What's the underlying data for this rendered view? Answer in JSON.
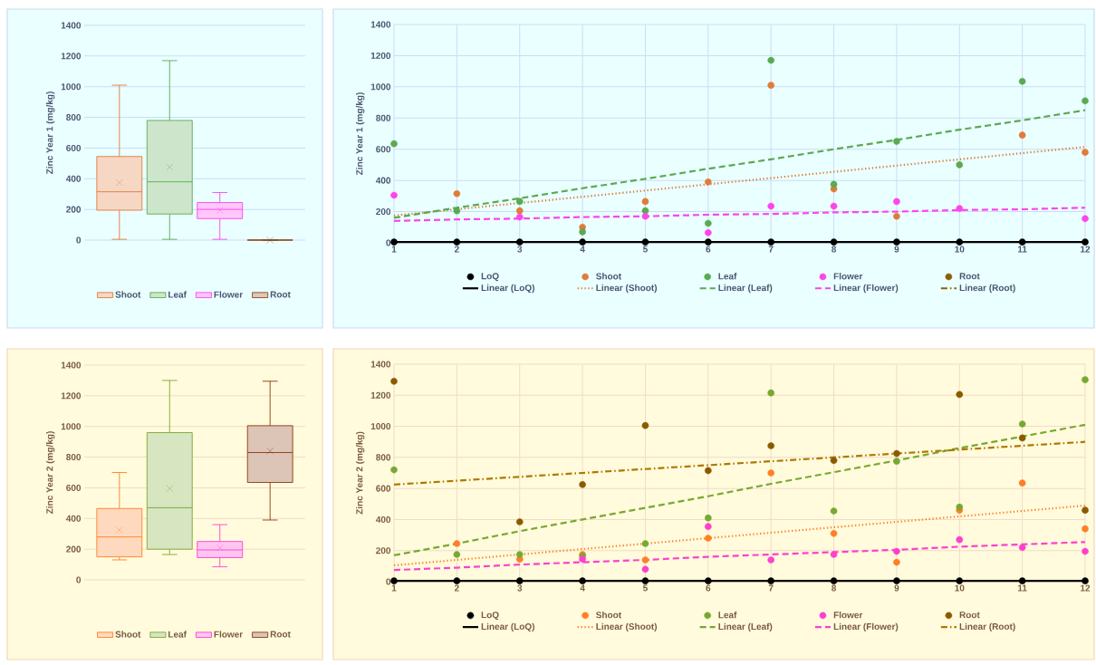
{
  "chart_data": [
    {
      "type": "box",
      "ylabel": "Zinc Year 1 (mg/kg)",
      "categories": [
        null
      ],
      "series": [
        {
          "name": "Shoot",
          "color": "#e07b39",
          "boxes": [
            {
              "low": 5,
              "q1": 195,
              "median": 315,
              "q3": 545,
              "high": 1010,
              "mean": 375
            }
          ]
        },
        {
          "name": "Leaf",
          "color": "#5aaa50",
          "boxes": [
            {
              "low": 5,
              "q1": 170,
              "median": 380,
              "q3": 780,
              "high": 1170,
              "mean": 475
            }
          ]
        },
        {
          "name": "Flower",
          "color": "#ff44ee",
          "boxes": [
            {
              "low": 5,
              "q1": 140,
              "median": 200,
              "q3": 245,
              "high": 310,
              "mean": 195
            }
          ]
        },
        {
          "name": "Root",
          "color": "#8b4a20",
          "boxes": [
            {
              "low": 0,
              "q1": 0,
              "median": 0,
              "q3": 0,
              "high": 0,
              "mean": 0
            }
          ]
        }
      ],
      "ylim": [
        0,
        1400
      ],
      "yticks": [
        0,
        200,
        400,
        600,
        800,
        1000,
        1200,
        1400
      ],
      "grid": "y",
      "legend": "bottom"
    },
    {
      "type": "scatter",
      "ylabel": "Zinc Year 1 (mg/kg)",
      "x": [
        1,
        2,
        3,
        4,
        5,
        6,
        7,
        8,
        9,
        10,
        11,
        12
      ],
      "series": [
        {
          "name": "LoQ",
          "color": "#000000",
          "values": [
            5,
            5,
            5,
            5,
            5,
            5,
            5,
            5,
            5,
            5,
            5,
            5
          ]
        },
        {
          "name": "Shoot",
          "color": "#e07b39",
          "values": [
            null,
            315,
            205,
            100,
            265,
            390,
            1010,
            345,
            170,
            null,
            690,
            580
          ]
        },
        {
          "name": "Leaf",
          "color": "#5aaa50",
          "values": [
            635,
            205,
            265,
            70,
            205,
            125,
            1170,
            375,
            650,
            500,
            1035,
            910
          ]
        },
        {
          "name": "Flower",
          "color": "#ff44ee",
          "values": [
            305,
            null,
            165,
            null,
            170,
            65,
            235,
            235,
            265,
            220,
            null,
            155
          ]
        },
        {
          "name": "Root",
          "color": "#8b6000",
          "values": [
            null,
            null,
            null,
            null,
            null,
            null,
            null,
            null,
            null,
            null,
            null,
            null
          ]
        },
        {
          "name": "Linear (LoQ)",
          "type": "line",
          "color": "#000000",
          "values": [
            5,
            5,
            5,
            5,
            5,
            5,
            5,
            5,
            5,
            5,
            5,
            5
          ],
          "line_style": "solid",
          "marker": "none"
        },
        {
          "name": "Linear (Shoot)",
          "type": "line",
          "color": "#e07b39",
          "values": [
            175,
            215,
            255,
            295,
            335,
            375,
            415,
            455,
            495,
            535,
            575,
            615
          ],
          "line_style": "dotted",
          "marker": "none"
        },
        {
          "name": "Linear (Leaf)",
          "type": "line",
          "color": "#5aaa50",
          "values": [
            160,
            225,
            285,
            350,
            410,
            475,
            535,
            600,
            660,
            725,
            785,
            850
          ],
          "line_style": "dashed",
          "marker": "none"
        },
        {
          "name": "Linear (Flower)",
          "type": "line",
          "color": "#ff44ee",
          "values": [
            140,
            150,
            155,
            165,
            170,
            180,
            185,
            195,
            200,
            210,
            215,
            225
          ],
          "line_style": "dashed",
          "marker": "none"
        },
        {
          "name": "Linear (Root)",
          "type": "line",
          "color": "#8b6000",
          "values": [
            null,
            null,
            null,
            null,
            null,
            null,
            null,
            null,
            null,
            null,
            null,
            null
          ],
          "line_style": "dashdot",
          "marker": "none"
        }
      ],
      "xlim": [
        1,
        12
      ],
      "xticks": [
        1,
        2,
        3,
        4,
        5,
        6,
        7,
        8,
        9,
        10,
        11,
        12
      ],
      "ylim": [
        0,
        1400
      ],
      "yticks": [
        0,
        200,
        400,
        600,
        800,
        1000,
        1200,
        1400
      ],
      "grid": true,
      "legend": "bottom",
      "marker": "circle"
    },
    {
      "type": "box",
      "ylabel": "Zinc Year 2 (mg/kg)",
      "categories": [
        null
      ],
      "series": [
        {
          "name": "Shoot",
          "color": "#ff7f27",
          "boxes": [
            {
              "low": 130,
              "q1": 150,
              "median": 280,
              "q3": 465,
              "high": 700,
              "mean": 325
            }
          ]
        },
        {
          "name": "Leaf",
          "color": "#78a832",
          "boxes": [
            {
              "low": 165,
              "q1": 200,
              "median": 470,
              "q3": 960,
              "high": 1300,
              "mean": 595
            }
          ]
        },
        {
          "name": "Flower",
          "color": "#ff3fcf",
          "boxes": [
            {
              "low": 85,
              "q1": 145,
              "median": 195,
              "q3": 250,
              "high": 360,
              "mean": 210
            }
          ]
        },
        {
          "name": "Root",
          "color": "#8b3a0f",
          "boxes": [
            {
              "low": 390,
              "q1": 635,
              "median": 830,
              "q3": 1005,
              "high": 1295,
              "mean": 840
            }
          ]
        }
      ],
      "ylim": [
        0,
        1400
      ],
      "yticks": [
        0,
        200,
        400,
        600,
        800,
        1000,
        1200,
        1400
      ],
      "grid": "y",
      "legend": "bottom"
    },
    {
      "type": "scatter",
      "ylabel": "Zinc Year 2 (mg/kg)",
      "x": [
        1,
        2,
        3,
        4,
        5,
        6,
        7,
        8,
        9,
        10,
        11,
        12
      ],
      "series": [
        {
          "name": "LoQ",
          "color": "#000000",
          "values": [
            5,
            5,
            5,
            5,
            5,
            5,
            5,
            5,
            5,
            5,
            5,
            5
          ]
        },
        {
          "name": "Shoot",
          "color": "#ff7f27",
          "values": [
            null,
            245,
            145,
            175,
            140,
            280,
            700,
            310,
            125,
            460,
            635,
            340
          ]
        },
        {
          "name": "Leaf",
          "color": "#78a832",
          "values": [
            720,
            175,
            175,
            165,
            245,
            410,
            1215,
            455,
            775,
            480,
            1015,
            1300
          ]
        },
        {
          "name": "Flower",
          "color": "#ff3fcf",
          "values": [
            null,
            null,
            null,
            145,
            80,
            355,
            140,
            175,
            195,
            270,
            220,
            195
          ]
        },
        {
          "name": "Root",
          "color": "#8b5a00",
          "values": [
            1290,
            null,
            385,
            625,
            1005,
            715,
            875,
            780,
            825,
            1205,
            925,
            460
          ]
        },
        {
          "name": "Linear (LoQ)",
          "type": "line",
          "color": "#000000",
          "values": [
            5,
            5,
            5,
            5,
            5,
            5,
            5,
            5,
            5,
            5,
            5,
            5
          ],
          "line_style": "solid",
          "marker": "none"
        },
        {
          "name": "Linear (Shoot)",
          "type": "line",
          "color": "#ff7f27",
          "values": [
            105,
            140,
            175,
            210,
            245,
            280,
            315,
            350,
            385,
            420,
            455,
            490
          ],
          "line_style": "dotted",
          "marker": "none"
        },
        {
          "name": "Linear (Leaf)",
          "type": "line",
          "color": "#78a832",
          "values": [
            170,
            245,
            325,
            400,
            475,
            550,
            630,
            705,
            780,
            860,
            935,
            1010
          ],
          "line_style": "dashed",
          "marker": "none"
        },
        {
          "name": "Linear (Flower)",
          "type": "line",
          "color": "#ff3fcf",
          "values": [
            75,
            90,
            110,
            125,
            140,
            160,
            175,
            190,
            205,
            225,
            240,
            255
          ],
          "line_style": "dashed",
          "marker": "none"
        },
        {
          "name": "Linear (Root)",
          "type": "line",
          "color": "#b07800",
          "values": [
            625,
            650,
            675,
            700,
            725,
            750,
            775,
            800,
            825,
            850,
            875,
            900
          ],
          "line_style": "dashdot",
          "marker": "none"
        }
      ],
      "xlim": [
        1,
        12
      ],
      "xticks": [
        1,
        2,
        3,
        4,
        5,
        6,
        7,
        8,
        9,
        10,
        11,
        12
      ],
      "ylim": [
        0,
        1400
      ],
      "yticks": [
        0,
        200,
        400,
        600,
        800,
        1000,
        1200,
        1400
      ],
      "grid": true,
      "legend": "bottom",
      "marker": "circle"
    }
  ]
}
